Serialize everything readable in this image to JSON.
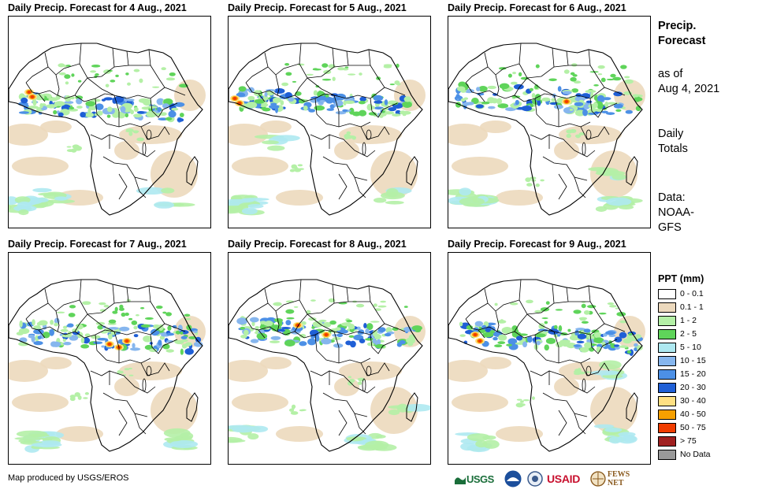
{
  "panels": [
    {
      "title": "Daily Precip. Forecast for 4 Aug., 2021"
    },
    {
      "title": "Daily Precip. Forecast for 5 Aug., 2021"
    },
    {
      "title": "Daily Precip. Forecast for 6 Aug., 2021"
    },
    {
      "title": "Daily Precip. Forecast for 7 Aug., 2021"
    },
    {
      "title": "Daily Precip. Forecast for 8 Aug., 2021"
    },
    {
      "title": "Daily Precip. Forecast for 9 Aug., 2021"
    }
  ],
  "sidebar": {
    "title_line1": "Precip.",
    "title_line2": "Forecast",
    "asof_line1": "as of",
    "asof_line2": "Aug 4, 2021",
    "totals_line1": "Daily",
    "totals_line2": "Totals",
    "data_line1": "Data:",
    "data_line2": "NOAA-",
    "data_line3": "GFS"
  },
  "legend": {
    "title": "PPT (mm)",
    "items": [
      {
        "label": "0 - 0.1",
        "color": "#ffffff"
      },
      {
        "label": "0.1 - 1",
        "color": "#ecd9bd"
      },
      {
        "label": "1 - 2",
        "color": "#b4f0a6"
      },
      {
        "label": "2 - 5",
        "color": "#5fd45a"
      },
      {
        "label": "5 - 10",
        "color": "#aee9f1"
      },
      {
        "label": "10 - 15",
        "color": "#86b6ee"
      },
      {
        "label": "15 - 20",
        "color": "#4c90e6"
      },
      {
        "label": "20 - 30",
        "color": "#1f5fd6"
      },
      {
        "label": "30 - 40",
        "color": "#ffe083"
      },
      {
        "label": "40 - 50",
        "color": "#f6a000"
      },
      {
        "label": "50 - 75",
        "color": "#f03c00"
      },
      {
        "label": "> 75",
        "color": "#a02020"
      },
      {
        "label": "No Data",
        "color": "#999999"
      }
    ]
  },
  "footer": {
    "credit": "Map produced by USGS/EROS",
    "logos": [
      "USGS",
      "NOAA",
      "USAID",
      "FEWS NET"
    ]
  }
}
